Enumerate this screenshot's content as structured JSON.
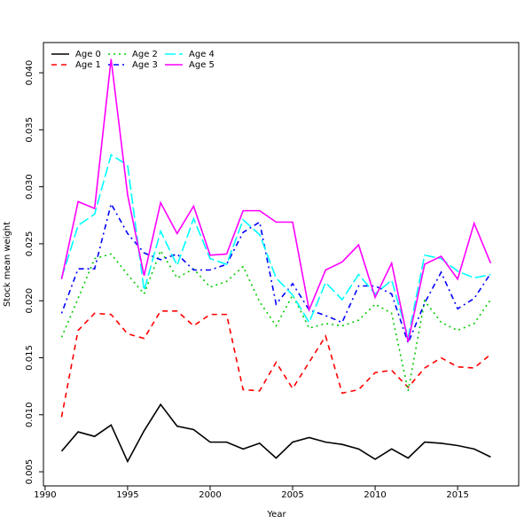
{
  "chart_data": {
    "type": "line",
    "xlabel": "Year",
    "ylabel": "Stock mean weight",
    "x": [
      1991,
      1992,
      1993,
      1994,
      1995,
      1996,
      1997,
      1998,
      1999,
      2000,
      2001,
      2002,
      2003,
      2004,
      2005,
      2006,
      2007,
      2008,
      2009,
      2010,
      2011,
      2012,
      2013,
      2014,
      2015,
      2016,
      2017
    ],
    "series": [
      {
        "name": "Age 0",
        "color": "#000000",
        "linestyle": "solid",
        "values": [
          0.0068,
          0.0085,
          0.0081,
          0.0091,
          0.0059,
          0.0086,
          0.0109,
          0.009,
          0.0087,
          0.0076,
          0.0076,
          0.007,
          0.0075,
          0.0062,
          0.0076,
          0.008,
          0.0076,
          0.0074,
          0.007,
          0.0061,
          0.007,
          0.0062,
          0.0076,
          0.0075,
          0.0073,
          0.007,
          0.0063
        ]
      },
      {
        "name": "Age 1",
        "color": "#ff0000",
        "linestyle": "dashed",
        "values": [
          0.0098,
          0.0174,
          0.0189,
          0.0188,
          0.0171,
          0.0167,
          0.0191,
          0.0191,
          0.0178,
          0.0188,
          0.0188,
          0.0122,
          0.0121,
          0.0146,
          0.0123,
          0.0146,
          0.0169,
          0.0119,
          0.0122,
          0.0137,
          0.0139,
          0.0124,
          0.0141,
          0.015,
          0.0142,
          0.0141,
          0.0153
        ]
      },
      {
        "name": "Age 2",
        "color": "#00cd00",
        "linestyle": "dotted",
        "values": [
          0.0168,
          0.0202,
          0.0237,
          0.0241,
          0.0223,
          0.0206,
          0.0244,
          0.022,
          0.0228,
          0.0212,
          0.0217,
          0.023,
          0.0199,
          0.0178,
          0.0205,
          0.0176,
          0.018,
          0.0178,
          0.0183,
          0.0197,
          0.0189,
          0.0121,
          0.02,
          0.0181,
          0.0174,
          0.018,
          0.0201
        ]
      },
      {
        "name": "Age 3",
        "color": "#0000ff",
        "linestyle": "dotdash",
        "values": [
          0.0189,
          0.0228,
          0.0228,
          0.0285,
          0.0259,
          0.0242,
          0.0236,
          0.0241,
          0.0227,
          0.0227,
          0.0232,
          0.026,
          0.0269,
          0.0197,
          0.0215,
          0.0192,
          0.0187,
          0.0181,
          0.0213,
          0.0213,
          0.0206,
          0.0163,
          0.0198,
          0.0225,
          0.0193,
          0.0202,
          0.0224
        ]
      },
      {
        "name": "Age 4",
        "color": "#00ffff",
        "linestyle": "longdash",
        "values": [
          0.022,
          0.0266,
          0.0276,
          0.0328,
          0.0319,
          0.0209,
          0.0261,
          0.0231,
          0.0272,
          0.0237,
          0.0232,
          0.0271,
          0.0258,
          0.022,
          0.0205,
          0.0181,
          0.0216,
          0.0201,
          0.0223,
          0.0206,
          0.0218,
          0.0168,
          0.024,
          0.0237,
          0.0226,
          0.022,
          0.0223
        ]
      },
      {
        "name": "Age 5",
        "color": "#ff00ff",
        "linestyle": "solid",
        "values": [
          0.0219,
          0.0287,
          0.0281,
          0.0412,
          0.0293,
          0.0222,
          0.0286,
          0.0259,
          0.0283,
          0.024,
          0.0241,
          0.0279,
          0.0279,
          0.0269,
          0.0269,
          0.0192,
          0.0227,
          0.0234,
          0.0249,
          0.0203,
          0.0233,
          0.0164,
          0.0232,
          0.0239,
          0.0219,
          0.0268,
          0.0233
        ]
      }
    ],
    "xlim": [
      1989.9,
      2018.7
    ],
    "xticks": [
      1990,
      1995,
      2000,
      2005,
      2010,
      2015
    ],
    "ylim": [
      0.00376,
      0.04265
    ],
    "yticks": [
      0.005,
      {
        "value": 0.01,
        "label": "0.010"
      },
      0.015,
      {
        "value": 0.02,
        "label": "0.020"
      },
      0.025,
      {
        "value": 0.03,
        "label": "0.030"
      },
      0.035,
      {
        "value": 0.04,
        "label": "0.040"
      }
    ],
    "legend": "top-left"
  }
}
